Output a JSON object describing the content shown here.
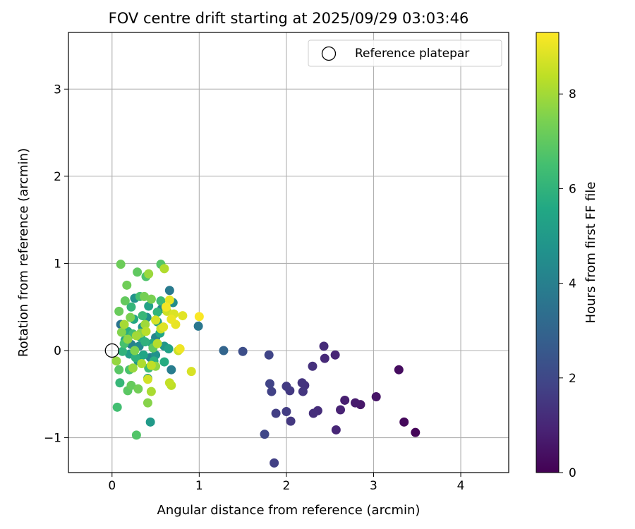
{
  "chart_data": {
    "type": "scatter",
    "title": "FOV centre drift starting at 2025/09/29 03:03:46",
    "xlabel": "Angular distance from reference (arcmin)",
    "ylabel": "Rotation from reference (arcmin)",
    "xlim": [
      -0.5,
      4.55
    ],
    "ylim": [
      -1.4,
      3.65
    ],
    "xticks": [
      0,
      1,
      2,
      3,
      4
    ],
    "yticks": [
      -1,
      0,
      1,
      2,
      3
    ],
    "xtick_labels": [
      "0",
      "1",
      "2",
      "3",
      "4"
    ],
    "ytick_labels": [
      "−1",
      "0",
      "1",
      "2",
      "3"
    ],
    "grid": true,
    "legend": {
      "position": "top-right",
      "entries": [
        "Reference platepar"
      ]
    },
    "reference_point": {
      "x": 0,
      "y": 0,
      "label": "Reference platepar"
    },
    "colorbar": {
      "label": "Hours from first FF file",
      "colormap": "viridis",
      "range": [
        0,
        9.3
      ],
      "ticks": [
        0,
        2,
        4,
        6,
        8
      ],
      "tick_labels": [
        "0",
        "2",
        "4",
        "6",
        "8"
      ]
    },
    "points": [
      {
        "x": 3.48,
        "y": -0.94,
        "h": 0.1
      },
      {
        "x": 3.35,
        "y": -0.82,
        "h": 0.2
      },
      {
        "x": 3.29,
        "y": -0.22,
        "h": 0.3
      },
      {
        "x": 3.03,
        "y": -0.53,
        "h": 0.5
      },
      {
        "x": 2.85,
        "y": -0.62,
        "h": 0.6
      },
      {
        "x": 2.79,
        "y": -0.6,
        "h": 0.7
      },
      {
        "x": 2.67,
        "y": -0.57,
        "h": 0.8
      },
      {
        "x": 2.62,
        "y": -0.68,
        "h": 0.9
      },
      {
        "x": 2.56,
        "y": -0.05,
        "h": 0.95
      },
      {
        "x": 2.57,
        "y": -0.91,
        "h": 1.0
      },
      {
        "x": 2.44,
        "y": -0.09,
        "h": 1.1
      },
      {
        "x": 2.43,
        "y": 0.05,
        "h": 1.15
      },
      {
        "x": 2.36,
        "y": -0.69,
        "h": 1.2
      },
      {
        "x": 2.31,
        "y": -0.72,
        "h": 1.25
      },
      {
        "x": 2.3,
        "y": -0.18,
        "h": 1.3
      },
      {
        "x": 2.21,
        "y": -0.4,
        "h": 1.35
      },
      {
        "x": 2.18,
        "y": -0.37,
        "h": 1.4
      },
      {
        "x": 2.19,
        "y": -0.47,
        "h": 1.45
      },
      {
        "x": 2.05,
        "y": -0.81,
        "h": 1.5
      },
      {
        "x": 2.04,
        "y": -0.46,
        "h": 1.55
      },
      {
        "x": 2.0,
        "y": -0.41,
        "h": 1.6
      },
      {
        "x": 2.0,
        "y": -0.7,
        "h": 1.65
      },
      {
        "x": 1.88,
        "y": -0.72,
        "h": 1.7
      },
      {
        "x": 1.86,
        "y": -1.29,
        "h": 1.75
      },
      {
        "x": 1.83,
        "y": -0.47,
        "h": 1.8
      },
      {
        "x": 1.81,
        "y": -0.38,
        "h": 1.85
      },
      {
        "x": 1.8,
        "y": -0.05,
        "h": 1.9
      },
      {
        "x": 1.75,
        "y": -0.96,
        "h": 1.95
      },
      {
        "x": 1.5,
        "y": -0.01,
        "h": 2.2
      },
      {
        "x": 1.28,
        "y": 0.0,
        "h": 3.0
      },
      {
        "x": 0.99,
        "y": 0.28,
        "h": 3.7
      },
      {
        "x": 0.66,
        "y": 0.69,
        "h": 3.8
      },
      {
        "x": 0.68,
        "y": -0.22,
        "h": 3.9
      },
      {
        "x": 0.1,
        "y": 0.3,
        "h": 3.6
      },
      {
        "x": 0.22,
        "y": 0.07,
        "h": 4.0
      },
      {
        "x": 0.44,
        "y": -0.08,
        "h": 4.1
      },
      {
        "x": 0.5,
        "y": 0.15,
        "h": 4.2
      },
      {
        "x": 0.57,
        "y": 0.48,
        "h": 4.3
      },
      {
        "x": 0.31,
        "y": 0.05,
        "h": 4.4
      },
      {
        "x": 0.7,
        "y": 0.55,
        "h": 4.5
      },
      {
        "x": 0.4,
        "y": 0.38,
        "h": 4.6
      },
      {
        "x": 0.5,
        "y": -0.05,
        "h": 4.7
      },
      {
        "x": 0.26,
        "y": 0.6,
        "h": 4.75
      },
      {
        "x": 0.35,
        "y": 0.27,
        "h": 4.8
      },
      {
        "x": 0.6,
        "y": 0.05,
        "h": 4.85
      },
      {
        "x": 0.3,
        "y": -0.12,
        "h": 4.9
      },
      {
        "x": 0.44,
        "y": -0.82,
        "h": 5.0
      },
      {
        "x": 0.41,
        "y": -0.32,
        "h": 5.1
      },
      {
        "x": 0.2,
        "y": -0.04,
        "h": 5.2
      },
      {
        "x": 0.52,
        "y": 0.33,
        "h": 5.25
      },
      {
        "x": 0.65,
        "y": 0.02,
        "h": 5.3
      },
      {
        "x": 0.42,
        "y": 0.51,
        "h": 5.35
      },
      {
        "x": 0.15,
        "y": 0.12,
        "h": 5.4
      },
      {
        "x": 0.36,
        "y": -0.05,
        "h": 5.45
      },
      {
        "x": 0.55,
        "y": 0.2,
        "h": 5.5
      },
      {
        "x": 0.25,
        "y": 0.36,
        "h": 5.55
      },
      {
        "x": 0.46,
        "y": 0.08,
        "h": 5.6
      },
      {
        "x": 0.6,
        "y": -0.13,
        "h": 5.7
      },
      {
        "x": 0.33,
        "y": 0.15,
        "h": 5.75
      },
      {
        "x": 0.18,
        "y": 0.22,
        "h": 5.8
      },
      {
        "x": 0.48,
        "y": -0.12,
        "h": 5.85
      },
      {
        "x": 0.27,
        "y": -0.08,
        "h": 5.9
      },
      {
        "x": 0.38,
        "y": 0.1,
        "h": 5.95
      },
      {
        "x": 0.12,
        "y": -0.01,
        "h": 6.0
      },
      {
        "x": 0.52,
        "y": 0.44,
        "h": 6.05
      },
      {
        "x": 0.22,
        "y": 0.5,
        "h": 6.1
      },
      {
        "x": 0.09,
        "y": -0.37,
        "h": 6.15
      },
      {
        "x": 0.35,
        "y": 0.4,
        "h": 6.2
      },
      {
        "x": 0.56,
        "y": 0.57,
        "h": 6.3
      },
      {
        "x": 0.42,
        "y": -0.2,
        "h": 6.35
      },
      {
        "x": 0.24,
        "y": 0.19,
        "h": 6.4
      },
      {
        "x": 0.06,
        "y": -0.65,
        "h": 6.45
      },
      {
        "x": 0.32,
        "y": 0.62,
        "h": 6.5
      },
      {
        "x": 0.14,
        "y": 0.08,
        "h": 6.55
      },
      {
        "x": 0.2,
        "y": -0.22,
        "h": 6.6
      },
      {
        "x": 0.39,
        "y": 0.85,
        "h": 6.7
      },
      {
        "x": 0.28,
        "y": -0.97,
        "h": 6.75
      },
      {
        "x": 0.56,
        "y": 0.99,
        "h": 6.8
      },
      {
        "x": 0.08,
        "y": -0.22,
        "h": 6.85
      },
      {
        "x": 0.18,
        "y": -0.46,
        "h": 6.9
      },
      {
        "x": 0.47,
        "y": 0.03,
        "h": 6.95
      },
      {
        "x": 0.29,
        "y": 0.9,
        "h": 7.0
      },
      {
        "x": 0.15,
        "y": 0.57,
        "h": 7.05
      },
      {
        "x": 0.22,
        "y": -0.4,
        "h": 7.1
      },
      {
        "x": 0.08,
        "y": 0.45,
        "h": 7.15
      },
      {
        "x": 0.1,
        "y": 0.99,
        "h": 7.2
      },
      {
        "x": 0.17,
        "y": 0.75,
        "h": 7.25
      },
      {
        "x": 0.3,
        "y": -0.44,
        "h": 7.3
      },
      {
        "x": 0.37,
        "y": 0.62,
        "h": 7.35
      },
      {
        "x": 0.45,
        "y": 0.59,
        "h": 7.4
      },
      {
        "x": 0.21,
        "y": 0.38,
        "h": 7.45
      },
      {
        "x": 0.26,
        "y": 0.0,
        "h": 7.5
      },
      {
        "x": 0.11,
        "y": 0.21,
        "h": 7.55
      },
      {
        "x": 0.41,
        "y": -0.6,
        "h": 7.6
      },
      {
        "x": 0.33,
        "y": 0.2,
        "h": 7.65
      },
      {
        "x": 0.18,
        "y": 0.13,
        "h": 7.7
      },
      {
        "x": 0.5,
        "y": -0.18,
        "h": 7.75
      },
      {
        "x": 0.05,
        "y": -0.12,
        "h": 7.8
      },
      {
        "x": 0.24,
        "y": -0.2,
        "h": 7.85
      },
      {
        "x": 0.42,
        "y": 0.88,
        "h": 7.9
      },
      {
        "x": 0.38,
        "y": 0.3,
        "h": 7.95
      },
      {
        "x": 0.28,
        "y": 0.17,
        "h": 8.0
      },
      {
        "x": 0.14,
        "y": 0.3,
        "h": 8.05
      },
      {
        "x": 0.45,
        "y": -0.47,
        "h": 8.1
      },
      {
        "x": 0.34,
        "y": -0.15,
        "h": 8.15
      },
      {
        "x": 0.6,
        "y": 0.94,
        "h": 8.2
      },
      {
        "x": 0.52,
        "y": 0.08,
        "h": 8.25
      },
      {
        "x": 0.39,
        "y": 0.22,
        "h": 8.3
      },
      {
        "x": 0.68,
        "y": -0.4,
        "h": 8.35
      },
      {
        "x": 0.45,
        "y": -0.17,
        "h": 8.4
      },
      {
        "x": 0.66,
        "y": -0.37,
        "h": 8.45
      },
      {
        "x": 0.56,
        "y": 0.25,
        "h": 8.5
      },
      {
        "x": 0.76,
        "y": 0.0,
        "h": 8.55
      },
      {
        "x": 0.63,
        "y": 0.45,
        "h": 8.6
      },
      {
        "x": 0.41,
        "y": -0.33,
        "h": 8.65
      },
      {
        "x": 0.5,
        "y": 0.35,
        "h": 8.7
      },
      {
        "x": 0.91,
        "y": -0.24,
        "h": 8.75
      },
      {
        "x": 0.71,
        "y": 0.42,
        "h": 8.8
      },
      {
        "x": 0.59,
        "y": 0.27,
        "h": 8.85
      },
      {
        "x": 0.81,
        "y": 0.4,
        "h": 8.9
      },
      {
        "x": 0.66,
        "y": 0.58,
        "h": 8.95
      },
      {
        "x": 0.73,
        "y": 0.3,
        "h": 9.0
      },
      {
        "x": 0.68,
        "y": 0.36,
        "h": 9.05
      },
      {
        "x": 0.78,
        "y": 0.02,
        "h": 9.1
      },
      {
        "x": 0.62,
        "y": 0.5,
        "h": 9.15
      },
      {
        "x": 1.0,
        "y": 0.39,
        "h": 9.25
      }
    ]
  }
}
